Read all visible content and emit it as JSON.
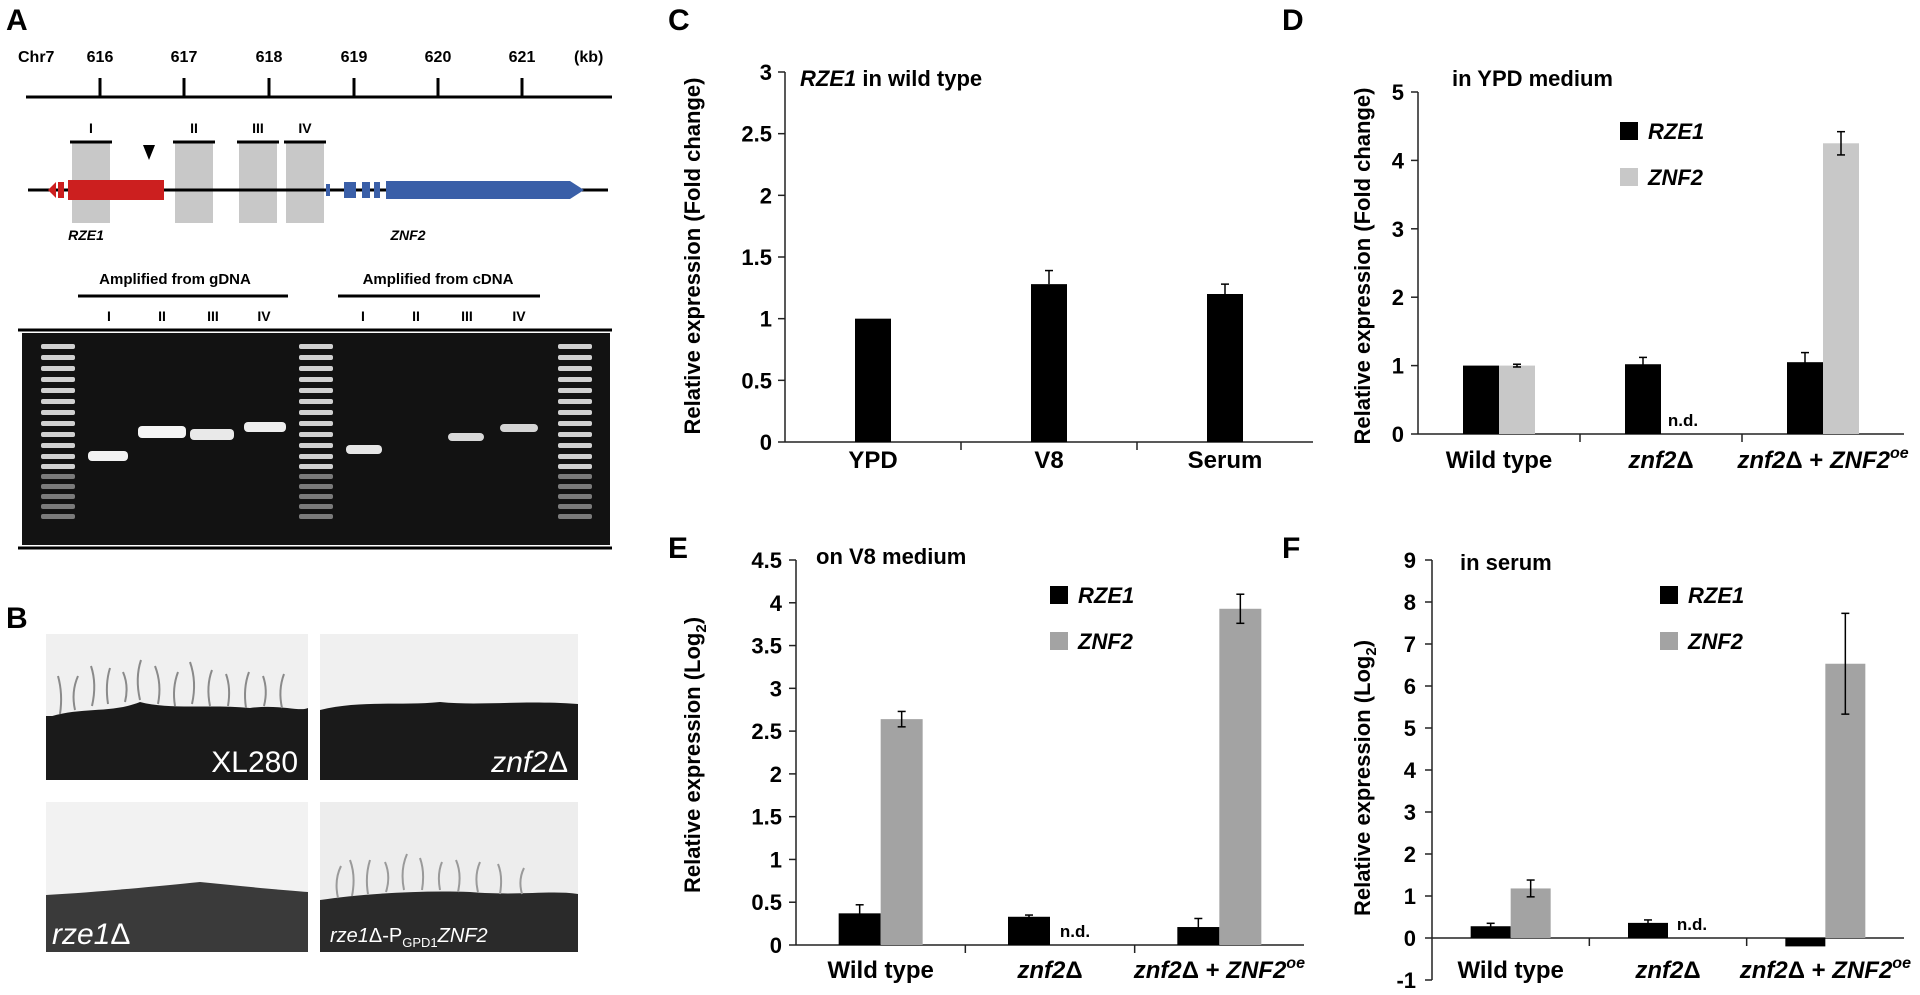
{
  "panelA": {
    "letter": "A",
    "chr_label": "Chr7",
    "kb_ticks": [
      "616",
      "617",
      "618",
      "619",
      "620",
      "621"
    ],
    "kb_unit": "(kb)",
    "region_labels": [
      "I",
      "II",
      "III",
      "IV"
    ],
    "gene_labels": [
      "RZE1",
      "ZNF2"
    ],
    "gdna_label": "Amplified from gDNA",
    "cdna_label": "Amplified from cDNA",
    "gel_lane_labels_gdna": [
      "I",
      "II",
      "III",
      "IV"
    ],
    "gel_lane_labels_cdna": [
      "I",
      "II",
      "III",
      "IV"
    ],
    "colors": {
      "rze1": "#cc1f1f",
      "znf2": "#3a5fa8",
      "region": "#c8c8c8"
    }
  },
  "panelB": {
    "letter": "B",
    "images": [
      {
        "label_italic": "",
        "label_plain": "XL280"
      },
      {
        "label_italic": "znf2",
        "label_plain": "Δ"
      },
      {
        "label_italic": "rze1",
        "label_plain": "Δ"
      },
      {
        "label_italic": "rze1",
        "label_plain": "Δ-P",
        "sub": "GPD1",
        "label_tail": "ZNF2"
      }
    ]
  },
  "chart_data": [
    {
      "panel": "C",
      "type": "bar",
      "title_italic": "RZE1",
      "title_plain": " in wild type",
      "ylabel": "Relative expression (Fold change)",
      "ylim": [
        0,
        3
      ],
      "yticks": [
        "0",
        "0.5",
        "1",
        "1.5",
        "2",
        "2.5",
        "3"
      ],
      "categories": [
        "YPD",
        "V8",
        "Serum"
      ],
      "series": [
        {
          "name": "",
          "color": "#000000",
          "values": [
            1.0,
            1.28,
            1.2
          ],
          "errors": [
            0,
            0.11,
            0.08
          ]
        }
      ],
      "legend": "none"
    },
    {
      "panel": "D",
      "type": "bar",
      "title_plain": "in YPD medium",
      "ylabel": "Relative expression (Fold change)",
      "ylim": [
        0,
        5
      ],
      "yticks": [
        "0",
        "1",
        "2",
        "3",
        "4",
        "5"
      ],
      "categories": [
        "Wild type",
        "znf2Δ",
        "znf2Δ + ZNF2oe"
      ],
      "series": [
        {
          "name": "RZE1",
          "color": "#000000",
          "values": [
            1.0,
            1.02,
            1.05
          ],
          "errors": [
            0,
            0.1,
            0.14
          ]
        },
        {
          "name": "ZNF2",
          "color": "#c8c8c8",
          "values": [
            1.0,
            null,
            4.25
          ],
          "errors": [
            0.02,
            0,
            0.17
          ]
        }
      ],
      "nd_label": "n.d.",
      "legend": "top-middle"
    },
    {
      "panel": "E",
      "type": "bar",
      "title_plain": "on V8 medium",
      "ylabel": "Relative expression (Log2)",
      "ylim": [
        0,
        4.5
      ],
      "yticks": [
        "0",
        "0.5",
        "1",
        "1.5",
        "2",
        "2.5",
        "3",
        "3.5",
        "4",
        "4.5"
      ],
      "categories": [
        "Wild type",
        "znf2Δ",
        "znf2Δ + ZNF2oe"
      ],
      "series": [
        {
          "name": "RZE1",
          "color": "#000000",
          "values": [
            0.37,
            0.33,
            0.21
          ],
          "errors": [
            0.1,
            0.02,
            0.1
          ]
        },
        {
          "name": "ZNF2",
          "color": "#a3a3a3",
          "values": [
            2.64,
            null,
            3.93
          ],
          "errors": [
            0.09,
            0,
            0.17
          ]
        }
      ],
      "nd_label": "n.d.",
      "legend": "top-middle"
    },
    {
      "panel": "F",
      "type": "bar",
      "title_plain": "in serum",
      "ylabel": "Relative expression (Log2)",
      "ylim": [
        -1,
        9
      ],
      "yticks": [
        "-1",
        "0",
        "1",
        "2",
        "3",
        "4",
        "5",
        "6",
        "7",
        "8",
        "9"
      ],
      "categories": [
        "Wild type",
        "znf2Δ",
        "znf2Δ + ZNF2oe"
      ],
      "series": [
        {
          "name": "RZE1",
          "color": "#000000",
          "values": [
            0.28,
            0.36,
            -0.2
          ],
          "errors": [
            0.07,
            0.07,
            0
          ]
        },
        {
          "name": "ZNF2",
          "color": "#a3a3a3",
          "values": [
            1.18,
            null,
            6.53
          ],
          "errors": [
            0.2,
            0,
            1.2
          ]
        }
      ],
      "nd_label": "n.d.",
      "legend": "top-middle"
    }
  ]
}
